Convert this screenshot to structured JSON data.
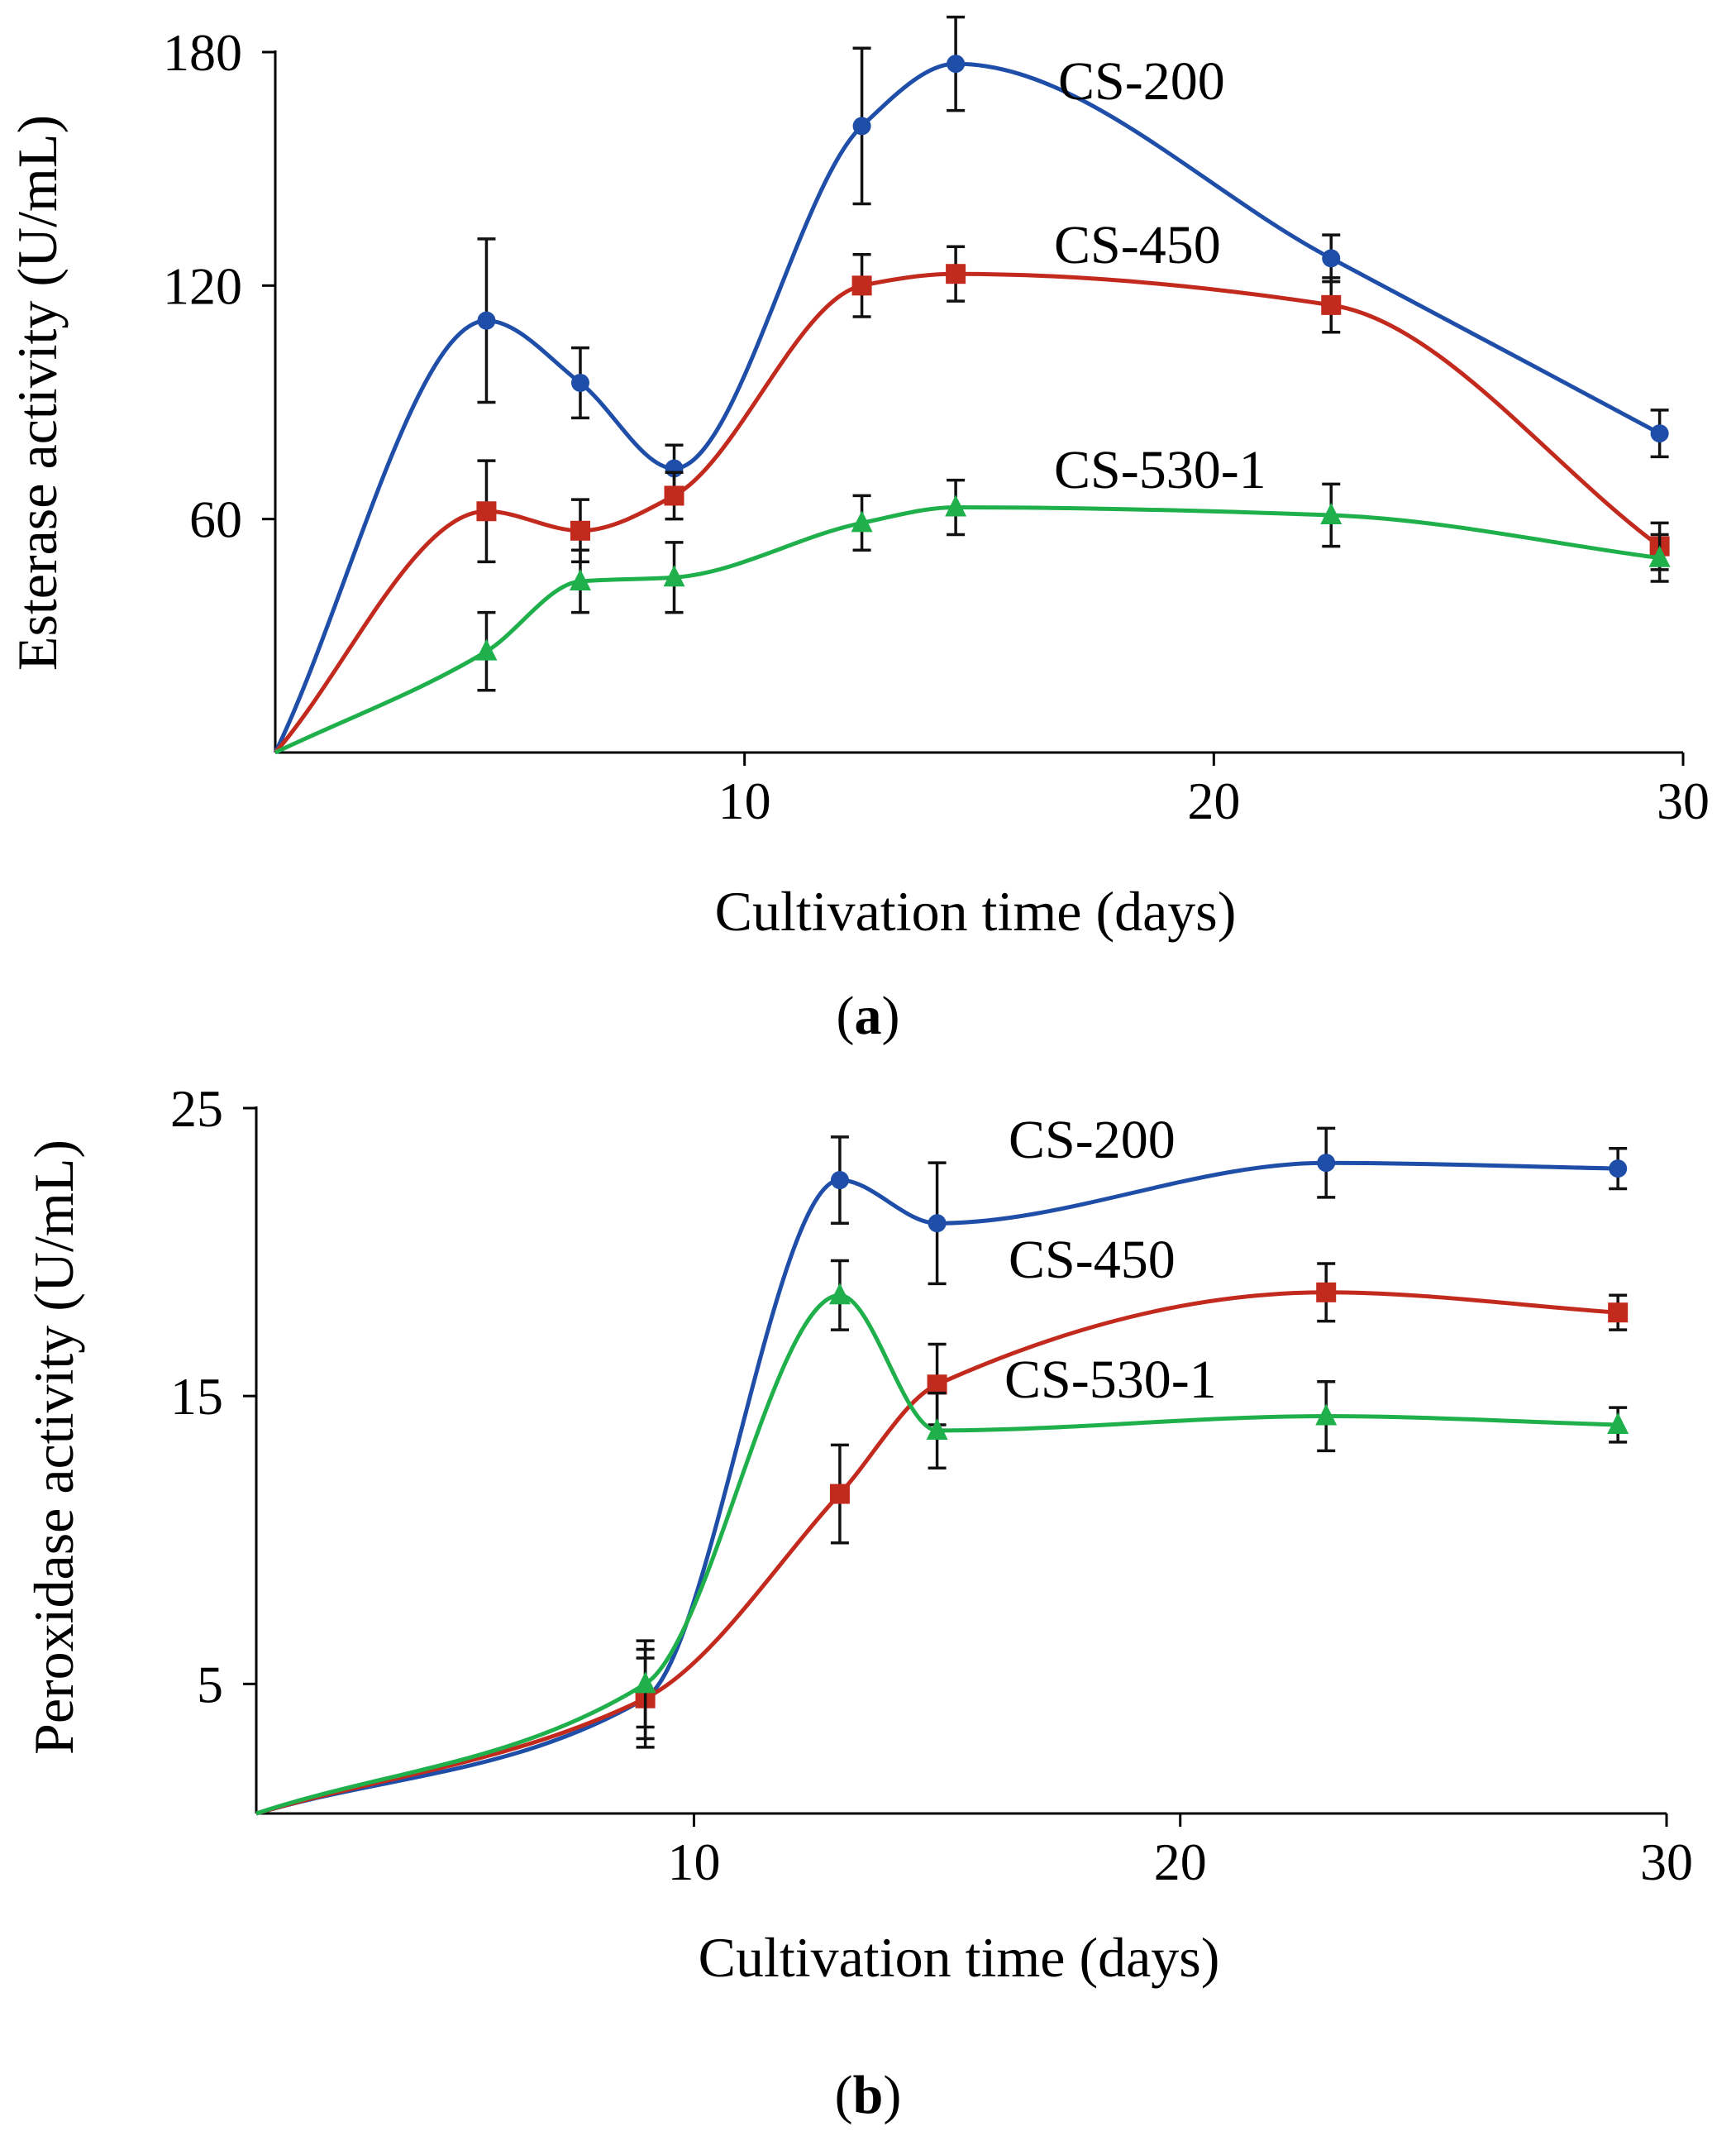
{
  "chart_data": [
    {
      "type": "line",
      "panel": "a",
      "xlabel": "Cultivation time (days)",
      "ylabel": "Esterase activity (U/mL)",
      "xlim": [
        0,
        30
      ],
      "ylim": [
        0,
        180
      ],
      "xticks": [
        10,
        20,
        30
      ],
      "yticks": [
        60,
        120,
        180
      ],
      "series": [
        {
          "name": "CS-200",
          "color": "#1f4ea8",
          "marker": "circle",
          "x": [
            0,
            4.5,
            6.5,
            8.5,
            12.5,
            14.5,
            22.5,
            29.5
          ],
          "y": [
            0,
            111,
            95,
            73,
            161,
            177,
            127,
            82
          ],
          "err": [
            0,
            21,
            9,
            6,
            20,
            12,
            6,
            6
          ]
        },
        {
          "name": "CS-450",
          "color": "#c32a1e",
          "marker": "square",
          "x": [
            0,
            4.5,
            6.5,
            8.5,
            12.5,
            14.5,
            22.5,
            29.5
          ],
          "y": [
            0,
            62,
            57,
            66,
            120,
            123,
            115,
            53
          ],
          "err": [
            0,
            13,
            8,
            6,
            8,
            7,
            7,
            6
          ]
        },
        {
          "name": "CS-530-1",
          "color": "#1fb04c",
          "marker": "triangle",
          "x": [
            0,
            4.5,
            6.5,
            8.5,
            12.5,
            14.5,
            22.5,
            29.5
          ],
          "y": [
            0,
            26,
            44,
            45,
            59,
            63,
            61,
            50
          ],
          "err": [
            0,
            10,
            8,
            9,
            7,
            7,
            8,
            6
          ]
        }
      ]
    },
    {
      "type": "line",
      "panel": "b",
      "xlabel": "Cultivation time (days)",
      "ylabel": "Peroxidase activity (U/mL)",
      "xlim": [
        1,
        30
      ],
      "ylim": [
        0.5,
        25
      ],
      "xticks": [
        10,
        20,
        30
      ],
      "yticks": [
        5,
        15,
        25
      ],
      "series": [
        {
          "name": "CS-200",
          "color": "#1f4ea8",
          "marker": "circle",
          "x": [
            1,
            9,
            13,
            15,
            23,
            29
          ],
          "y": [
            0.5,
            4.5,
            22.5,
            21,
            23.1,
            22.9
          ],
          "err": [
            0,
            1.4,
            1.5,
            2.1,
            1.2,
            0.7
          ]
        },
        {
          "name": "CS-450",
          "color": "#c32a1e",
          "marker": "square",
          "x": [
            1,
            9,
            13,
            15,
            23,
            29
          ],
          "y": [
            0.5,
            4.5,
            11.6,
            15.4,
            18.6,
            17.9
          ],
          "err": [
            0,
            1.7,
            1.7,
            1.4,
            1.0,
            0.6
          ]
        },
        {
          "name": "CS-530-1",
          "color": "#1fb04c",
          "marker": "triangle",
          "x": [
            1,
            9,
            13,
            15,
            23,
            29
          ],
          "y": [
            0.5,
            5.0,
            18.5,
            13.8,
            14.3,
            14.0
          ],
          "err": [
            0,
            1.5,
            1.2,
            1.3,
            1.2,
            0.6
          ]
        }
      ]
    }
  ],
  "panels": [
    {
      "label_open": "(",
      "label_letter": "a",
      "label_close": ")"
    },
    {
      "label_open": "(",
      "label_letter": "b",
      "label_close": ")"
    }
  ]
}
